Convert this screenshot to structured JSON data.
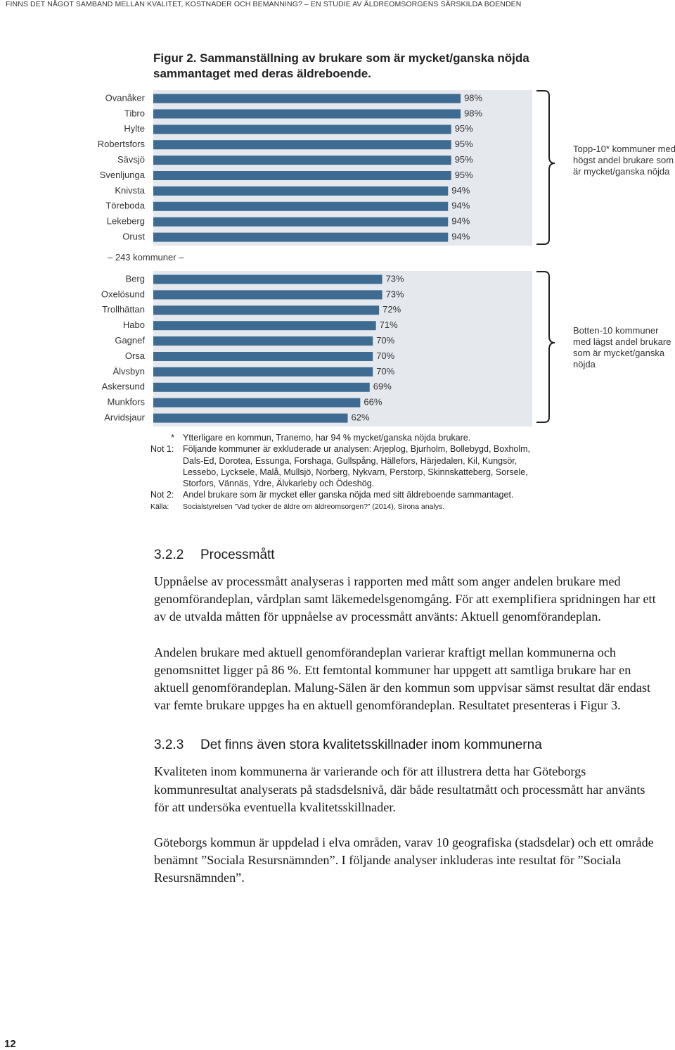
{
  "header": "FINNS DET NÅGOT SAMBAND MELLAN KVALITET, KOSTNADER OCH BEMANNING? – EN STUDIE AV ÄLDREOMSORGENS SÄRSKILDA BOENDEN",
  "figure_title": "Figur 2. Sammanställning av brukare som är mycket/ganska nöjda sammantaget med deras äldreboende.",
  "chart_data": [
    {
      "type": "bar",
      "color": "#3d6b91",
      "categories": [
        "Ovanåker",
        "Tibro",
        "Hylte",
        "Robertsfors",
        "Sävsjö",
        "Svenljunga",
        "Knivsta",
        "Töreboda",
        "Lekeberg",
        "Orust"
      ],
      "values": [
        98,
        98,
        95,
        95,
        95,
        95,
        94,
        94,
        94,
        94
      ],
      "value_labels": [
        "98%",
        "98%",
        "95%",
        "95%",
        "95%",
        "95%",
        "94%",
        "94%",
        "94%",
        "94%"
      ],
      "bracket_label": "Topp-10* kommuner med högst andel brukare som är mycket/ganska nöjda"
    },
    {
      "type": "bar",
      "color": "#3d6b91",
      "categories": [
        "Berg",
        "Oxelösund",
        "Trollhättan",
        "Habo",
        "Gagnef",
        "Orsa",
        "Älvsbyn",
        "Askersund",
        "Munkfors",
        "Arvidsjaur"
      ],
      "values": [
        73,
        73,
        72,
        71,
        70,
        70,
        70,
        69,
        66,
        62
      ],
      "value_labels": [
        "73%",
        "73%",
        "72%",
        "71%",
        "70%",
        "70%",
        "70%",
        "69%",
        "66%",
        "62%"
      ],
      "bracket_label": "Botten-10 kommuner med lägst andel brukare som är mycket/ganska nöjda"
    }
  ],
  "separator": "– 243 kommuner –",
  "notes": [
    {
      "label": "*",
      "text": "Ytterligare en kommun, Tranemo, har 94 % mycket/ganska nöjda brukare."
    },
    {
      "label": "Not 1:",
      "text": "Följande kommuner är exkluderade ur analysen: Arjeplog, Bjurholm, Bollebygd, Boxholm, Dals-Ed, Dorotea, Essunga, Forshaga, Gullspång, Hällefors, Härjedalen, Kil, Kungsör, Lessebo, Lycksele, Malå, Mullsjö, Norberg, Nykvarn, Perstorp, Skinnskatteberg, Sorsele, Storfors, Vännäs, Ydre, Älvkarleby och Ödeshög."
    },
    {
      "label": "Not 2:",
      "text": "Andel brukare som är mycket eller ganska nöjda med sitt äldreboende sammantaget."
    },
    {
      "label": "Källa:",
      "text": "Socialstyrelsen ”Vad tycker de äldre om äldreomsorgen?” (2014), Sirona analys."
    }
  ],
  "sections": [
    {
      "number": "3.2.2",
      "title": "Processmått",
      "paragraphs": [
        "Uppnåelse av processmått analyseras i rapporten med mått som anger andelen brukare med genomförandeplan, vårdplan samt läkemedelsgenomgång. För att exemplifiera spridningen har ett av de utvalda måtten för uppnåelse av processmått använts: Aktuell genomförandeplan.",
        "Andelen brukare med aktuell genomförandeplan varierar kraftigt mellan kommunerna och genomsnittet ligger på 86 %. Ett femtontal kommuner har uppgett att samtliga brukare har en aktuell genomförandeplan. Malung-Sälen är den kommun som uppvisar sämst resultat där endast var femte brukare uppges ha en aktuell genomförandeplan. Resultatet presenteras i Figur 3."
      ]
    },
    {
      "number": "3.2.3",
      "title": "Det finns även stora kvalitetsskillnader inom kommunerna",
      "paragraphs": [
        "Kvaliteten inom kommunerna är varierande och för att illustrera detta har Göteborgs kommunresultat analyserats på stadsdelsnivå, där både resultatmått och processmått har använts för att undersöka eventuella kvalitetsskillnader.",
        "Göteborgs kommun är uppdelad i elva områden, varav 10 geografiska (stadsdelar) och ett område benämnt ”Sociala Resursnämnden”. I följande analyser inkluderas inte resultat för ”Sociala Resursnämnden”."
      ]
    }
  ],
  "page_number": "12"
}
